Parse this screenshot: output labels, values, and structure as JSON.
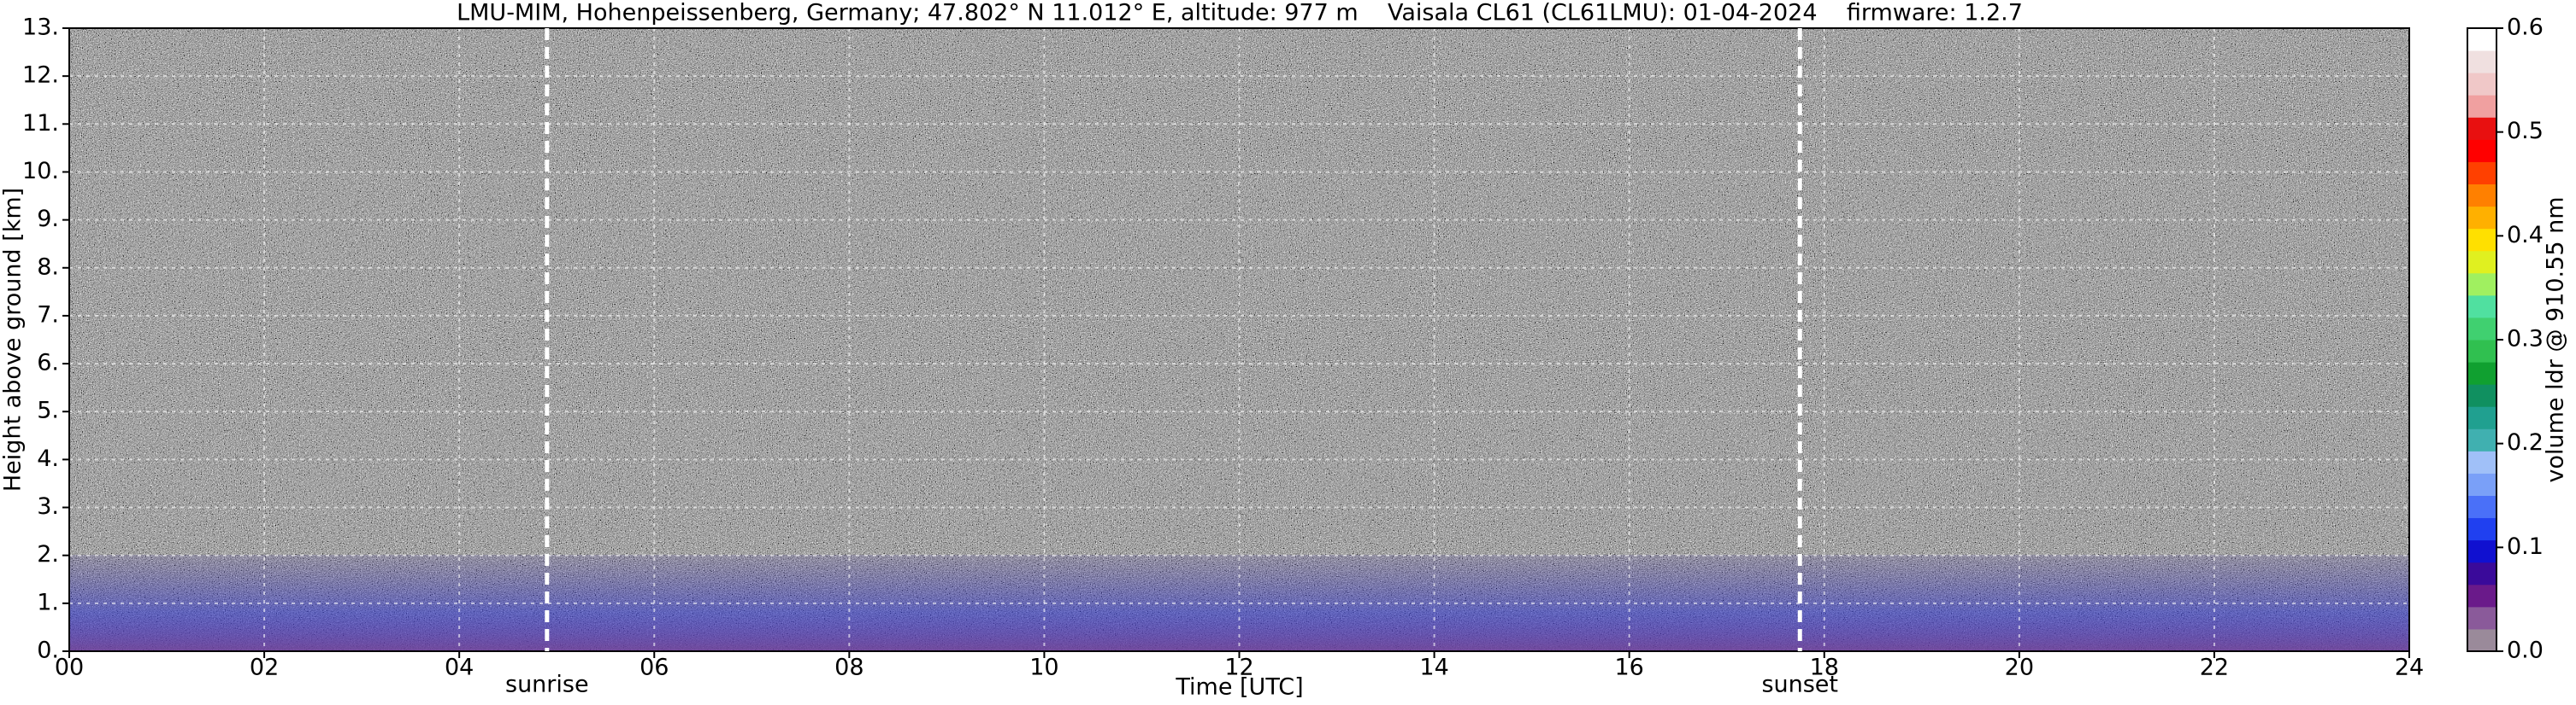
{
  "chart_data": {
    "type": "heatmap",
    "title": "LMU-MIM, Hohenpeissenberg, Germany; 47.802° N 11.012° E, altitude: 977 m    Vaisala CL61 (CL61LMU): 01-04-2024    firmware: 1.2.7",
    "x_label": "Time [UTC]",
    "y_label": "Height above ground [km]",
    "colorbar_label": "volume ldr @ 910.55 nm",
    "xlim": [
      0,
      24
    ],
    "xticks": [
      {
        "value": 0,
        "label": "00"
      },
      {
        "value": 2,
        "label": "02"
      },
      {
        "value": 4,
        "label": "04"
      },
      {
        "value": 6,
        "label": "06"
      },
      {
        "value": 8,
        "label": "08"
      },
      10,
      12,
      14,
      16,
      18,
      20,
      22,
      24
    ],
    "ylim": [
      0,
      13
    ],
    "yticks": [
      {
        "value": 0,
        "label": "0."
      },
      {
        "value": 1,
        "label": "1."
      },
      {
        "value": 2,
        "label": "2."
      },
      {
        "value": 3,
        "label": "3."
      },
      {
        "value": 4,
        "label": "4."
      },
      {
        "value": 5,
        "label": "5."
      },
      {
        "value": 6,
        "label": "6."
      },
      {
        "value": 7,
        "label": "7."
      },
      {
        "value": 8,
        "label": "8."
      },
      {
        "value": 9,
        "label": "9."
      },
      {
        "value": 10,
        "label": "10."
      },
      {
        "value": 11,
        "label": "11."
      },
      {
        "value": 12,
        "label": "12."
      },
      {
        "value": 13,
        "label": "13."
      }
    ],
    "clim": [
      0,
      0.6
    ],
    "cticks": [
      {
        "value": 0,
        "label": "0.0"
      },
      0.1,
      0.2,
      0.3,
      0.4,
      0.5,
      0.6
    ],
    "colors": [
      "#9a8a9a",
      "#8a5a9a",
      "#6a1a8a",
      "#3a0a9a",
      "#1010d0",
      "#2040f0",
      "#4a70f8",
      "#7aa0f8",
      "#a0c0f8",
      "#40b0b0",
      "#20a090",
      "#109060",
      "#10a030",
      "#30c050",
      "#40d070",
      "#50e0a0",
      "#a0f060",
      "#e0f020",
      "#ffe000",
      "#ffb000",
      "#ff8000",
      "#ff4000",
      "#ff0000",
      "#e81010",
      "#f0a0a0",
      "#f0c8c8",
      "#f0e0e0",
      "#ffffff"
    ],
    "grid": true,
    "annotations": [
      {
        "text": "sunrise",
        "x": 4.9
      },
      {
        "text": "sunset",
        "x": 17.75
      }
    ]
  }
}
